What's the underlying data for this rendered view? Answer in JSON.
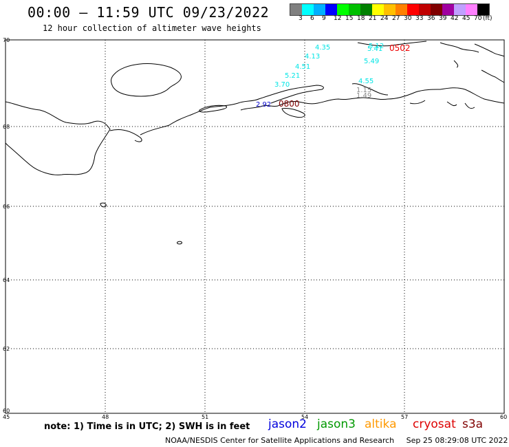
{
  "header": {
    "title": "00:00 – 11:59 UTC 09/23/2022",
    "subtitle": "12 hour collection of altimeter wave heights"
  },
  "color_scale": {
    "unit": "(ft)",
    "swatches": [
      "#808080",
      "#00ffff",
      "#00b0ff",
      "#0000ff",
      "#00ff00",
      "#00c000",
      "#008000",
      "#ffff00",
      "#ffc000",
      "#ff8000",
      "#ff0000",
      "#c00000",
      "#800000",
      "#a000a0",
      "#c0a0ff",
      "#ff80ff",
      "#000000"
    ],
    "labels": [
      "3",
      "6",
      "9",
      "12",
      "15",
      "18",
      "21",
      "24",
      "27",
      "30",
      "33",
      "36",
      "39",
      "42",
      "45",
      "70"
    ]
  },
  "map": {
    "lat_labels": [
      "70",
      "68",
      "66",
      "64",
      "62",
      "60"
    ],
    "lon_labels": [
      "45",
      "48",
      "51",
      "54",
      "57",
      "60"
    ],
    "wave_labels": [
      {
        "text": "4.35",
        "color": "#00e5e5"
      },
      {
        "text": "4.13",
        "color": "#00e5e5"
      },
      {
        "text": "4.51",
        "color": "#00e5e5"
      },
      {
        "text": "5.21",
        "color": "#00e5e5"
      },
      {
        "text": "3.70",
        "color": "#00e5e5"
      },
      {
        "text": "5.12",
        "color": "#00e5e5"
      },
      {
        "text": "5.41",
        "color": "#00e5e5"
      },
      {
        "text": "5.49",
        "color": "#00e5e5"
      },
      {
        "text": "4.55",
        "color": "#00e5e5"
      },
      {
        "text": "1.15",
        "color": "#888888"
      },
      {
        "text": "1.49",
        "color": "#888888"
      },
      {
        "text": "2.92",
        "color": "#0000cc"
      }
    ],
    "time_labels": [
      {
        "text": "0502",
        "color": "#ee0000"
      },
      {
        "text": "0800",
        "color": "#800000"
      }
    ]
  },
  "legend": {
    "note": "note:  1) Time is in UTC;  2) SWH is in feet",
    "satellites": [
      {
        "name": "jason2",
        "color": "#0000dd"
      },
      {
        "name": "jason3",
        "color": "#009900"
      },
      {
        "name": "altika",
        "color": "#ff9900"
      },
      {
        "name": "cryosat",
        "color": "#dd0000"
      },
      {
        "name": "s3a",
        "color": "#800000"
      }
    ]
  },
  "footer": {
    "credit": "NOAA/NESDIS Center for Satellite Applications and Research",
    "timestamp": "Sep 25 08:29:08 UTC 2022"
  }
}
